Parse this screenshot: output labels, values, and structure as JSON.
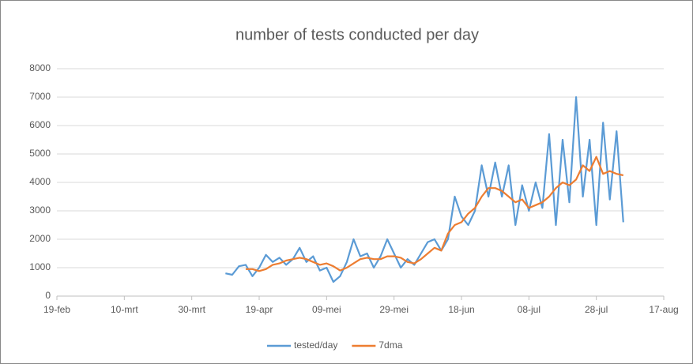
{
  "chart_data": {
    "type": "line",
    "title": "number of tests conducted per day",
    "categories": [
      "19-feb",
      null,
      null,
      null,
      null,
      null,
      null,
      null,
      null,
      null,
      "10-mrt",
      null,
      null,
      null,
      null,
      null,
      null,
      null,
      null,
      null,
      "30-mrt",
      null,
      null,
      null,
      null,
      null,
      null,
      null,
      null,
      null,
      "19-apr",
      null,
      null,
      null,
      null,
      null,
      null,
      null,
      null,
      null,
      "09-mei",
      null,
      null,
      null,
      null,
      null,
      null,
      null,
      null,
      null,
      "29-mei",
      null,
      null,
      null,
      null,
      null,
      null,
      null,
      null,
      null,
      "18-jun",
      null,
      null,
      null,
      null,
      null,
      null,
      null,
      null,
      null,
      "08-jul",
      null,
      null,
      null,
      null,
      null,
      null,
      null,
      null,
      null,
      "28-jul",
      null,
      null,
      null,
      null,
      null,
      null,
      null,
      null,
      null,
      "17-aug"
    ],
    "series": [
      {
        "name": "tested/day",
        "color": "#5b9bd5",
        "values": [
          null,
          null,
          null,
          null,
          null,
          null,
          null,
          null,
          null,
          null,
          null,
          null,
          null,
          null,
          null,
          null,
          null,
          null,
          null,
          null,
          null,
          null,
          null,
          null,
          null,
          800,
          750,
          1050,
          1100,
          700,
          1000,
          1450,
          1200,
          1350,
          1100,
          1300,
          1700,
          1200,
          1400,
          900,
          1000,
          500,
          700,
          1200,
          2000,
          1400,
          1500,
          1000,
          1400,
          2000,
          1500,
          1000,
          1300,
          1100,
          1500,
          1900,
          2000,
          1600,
          2000,
          3500,
          2800,
          2500,
          3000,
          4600,
          3500,
          4700,
          3500,
          4600,
          2500,
          3900,
          3000,
          4000,
          3100,
          5700,
          2500,
          5500,
          3300,
          7000,
          3500,
          5500,
          2500,
          6100,
          3400,
          5800,
          2600,
          null,
          null,
          null,
          null,
          null,
          null
        ]
      },
      {
        "name": "7dma",
        "color": "#ed7d31",
        "values": [
          null,
          null,
          null,
          null,
          null,
          null,
          null,
          null,
          null,
          null,
          null,
          null,
          null,
          null,
          null,
          null,
          null,
          null,
          null,
          null,
          null,
          null,
          null,
          null,
          null,
          null,
          null,
          null,
          950,
          950,
          880,
          950,
          1100,
          1150,
          1250,
          1300,
          1350,
          1300,
          1200,
          1100,
          1150,
          1050,
          900,
          1000,
          1150,
          1300,
          1350,
          1300,
          1300,
          1400,
          1400,
          1350,
          1200,
          1150,
          1300,
          1500,
          1700,
          1600,
          2200,
          2500,
          2600,
          2900,
          3100,
          3500,
          3800,
          3800,
          3700,
          3500,
          3300,
          3400,
          3100,
          3200,
          3300,
          3500,
          3800,
          4000,
          3900,
          4100,
          4600,
          4400,
          4900,
          4300,
          4400,
          4300,
          4250,
          null,
          null,
          null,
          null,
          null,
          null
        ]
      }
    ],
    "ylim": [
      0,
      8000
    ],
    "yticks": [
      0,
      1000,
      2000,
      3000,
      4000,
      5000,
      6000,
      7000,
      8000
    ],
    "grid": true,
    "legend": "bottom"
  }
}
